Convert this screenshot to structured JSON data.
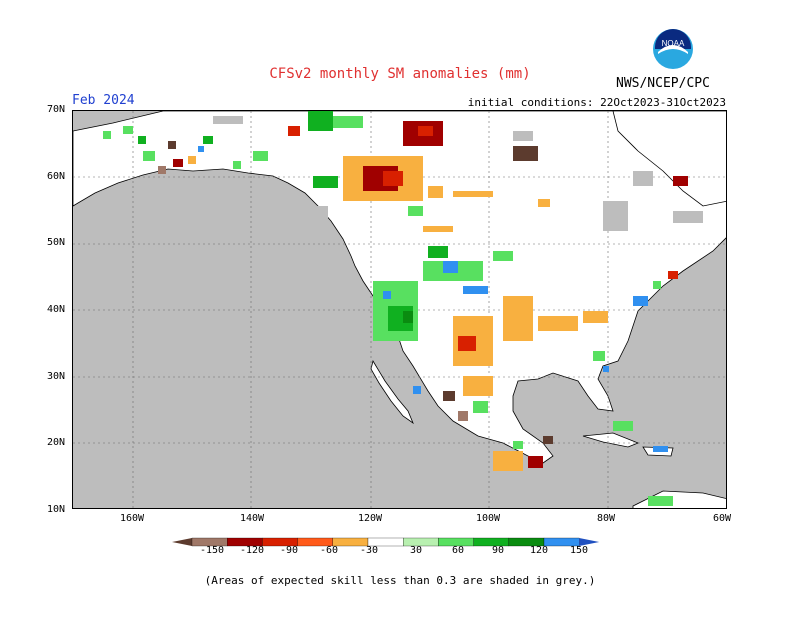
{
  "title": "CFSv2 monthly SM anomalies (mm)",
  "valid_month": "Feb 2024",
  "initial_conditions": "initial conditions: 22Oct2023-31Oct2023",
  "agency": "NWS/NCEP/CPC",
  "logo_text": "NOAA",
  "footnote": "(Areas of expected skill less than 0.3 are shaded in grey.)",
  "map": {
    "lat_ticks": [
      "70N",
      "60N",
      "50N",
      "40N",
      "30N",
      "20N",
      "10N"
    ],
    "lon_ticks": [
      "160W",
      "140W",
      "120W",
      "100W",
      "80W",
      "60W"
    ],
    "ocean_color": "#bdbdbd",
    "land_color": "#ffffff",
    "gridlines": true
  },
  "colorbar": {
    "labels": [
      "-150",
      "-120",
      "-90",
      "-60",
      "-30",
      "30",
      "60",
      "90",
      "120",
      "150"
    ],
    "colors": [
      "#5c3b2e",
      "#a07868",
      "#a00000",
      "#d82000",
      "#ff5a1a",
      "#f8b040",
      "#ffffff",
      "#b8f0b0",
      "#58e060",
      "#10b020",
      "#0a8c10",
      "#3090f0",
      "#2050c0"
    ]
  }
}
